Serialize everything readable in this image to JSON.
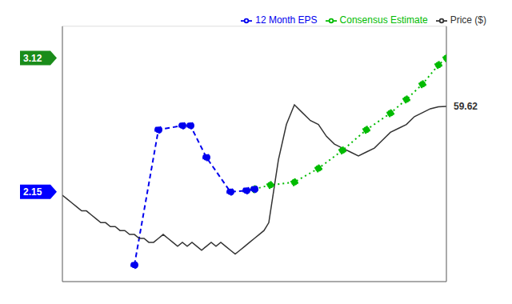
{
  "chart_data": {
    "type": "line",
    "tick_labels": false,
    "grid": true,
    "legend": "top right",
    "xlim": [
      0,
      24
    ],
    "xticks": [
      0,
      5,
      10,
      15,
      20
    ],
    "ylim": [
      1.5,
      3.35
    ],
    "y2lim": [
      15,
      80
    ],
    "y2ticks": [
      20,
      30,
      40,
      50,
      60,
      70,
      80
    ],
    "series": [
      {
        "name": "Consensus Estimate",
        "color": "#00bb00",
        "line_style": "dotted",
        "marker": "circle",
        "x": [
          12.0,
          13.0,
          14.5,
          16.0,
          17.5,
          19.0,
          20.5,
          21.5,
          22.5,
          23.5,
          24.0
        ],
        "values": [
          2.17,
          2.2,
          2.22,
          2.32,
          2.45,
          2.6,
          2.72,
          2.82,
          2.93,
          3.07,
          3.12
        ]
      },
      {
        "name": "12 Month EPS",
        "color": "#0000ee",
        "line_style": "dashed",
        "marker": "circle",
        "x": [
          4.5,
          6.0,
          7.5,
          8.0,
          9.0,
          10.5,
          11.5,
          12.0
        ],
        "values": [
          1.62,
          2.6,
          2.63,
          2.63,
          2.4,
          2.15,
          2.16,
          2.17
        ]
      },
      {
        "name": "Price ($)",
        "color": "#333333",
        "line_style": "solid",
        "marker": "none",
        "axis": "y2",
        "x": [
          0,
          0.3,
          0.6,
          0.9,
          1.2,
          1.5,
          1.8,
          2.1,
          2.4,
          2.7,
          3.0,
          3.3,
          3.6,
          3.9,
          4.2,
          4.5,
          4.8,
          5.1,
          5.4,
          5.7,
          6.0,
          6.3,
          6.6,
          6.9,
          7.2,
          7.5,
          7.8,
          8.1,
          8.4,
          8.7,
          9.0,
          9.3,
          9.6,
          9.9,
          10.2,
          10.5,
          10.8,
          11.1,
          11.4,
          11.7,
          12.0,
          12.3,
          12.6,
          12.9,
          13.2,
          13.5,
          14.0,
          14.5,
          15.0,
          15.5,
          16.0,
          16.5,
          17.0,
          17.5,
          18.0,
          18.5,
          19.0,
          19.5,
          20.0,
          20.5,
          21.0,
          21.5,
          22.0,
          22.5,
          23.0,
          23.5,
          24.0
        ],
        "values": [
          37,
          36,
          35,
          34,
          33,
          33,
          32,
          31,
          30,
          30,
          29,
          29,
          28,
          28,
          27,
          27,
          26,
          26,
          25,
          25,
          26,
          27,
          26,
          25,
          24,
          25,
          24,
          25,
          24,
          23,
          24,
          25,
          24,
          25,
          24,
          23,
          22,
          23,
          24,
          25,
          26,
          27,
          28,
          30,
          38,
          46,
          55,
          60,
          58,
          56,
          55,
          52,
          50,
          49,
          48,
          47,
          48,
          49,
          51,
          53,
          54,
          55,
          57,
          58,
          59,
          59.5,
          59.62
        ]
      }
    ],
    "annotations": [
      {
        "text": "3.12",
        "y": 3.12,
        "axis": "y",
        "color": "#1a8c1a"
      },
      {
        "text": "2.15",
        "y": 2.15,
        "axis": "y",
        "color": "#0000ff"
      },
      {
        "text": "59.62",
        "y": 59.62,
        "axis": "y2"
      }
    ]
  }
}
